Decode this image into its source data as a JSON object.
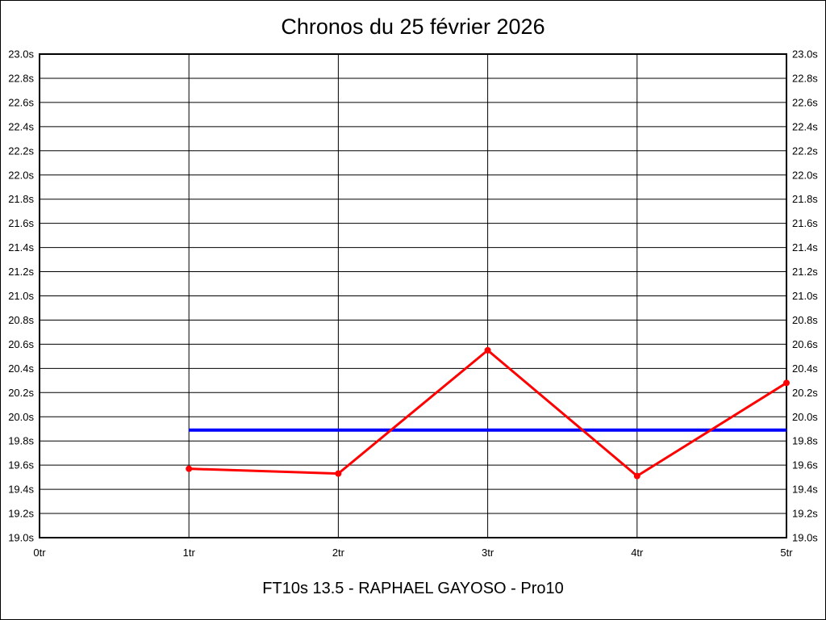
{
  "chart_data": {
    "type": "line",
    "title": "Chronos du 25 février 2026",
    "subtitle": "FT10s 13.5 - RAPHAEL GAYOSO - Pro10",
    "x_categories": [
      "0tr",
      "1tr",
      "2tr",
      "3tr",
      "4tr",
      "5tr"
    ],
    "xlim": [
      0,
      5
    ],
    "ylim": [
      19.0,
      23.0
    ],
    "y_tick_step": 0.2,
    "y_tick_suffix": "s",
    "y_axis_sides": "both",
    "grid": true,
    "legend": "none",
    "series": [
      {
        "name": "average-line",
        "color": "#0000ff",
        "marker": "none",
        "line_width": 4,
        "points": [
          {
            "x": 1,
            "y": 19.89
          },
          {
            "x": 5,
            "y": 19.89
          }
        ]
      },
      {
        "name": "lap-times",
        "color": "#ff0000",
        "marker": "circle",
        "line_width": 3,
        "points": [
          {
            "x": 1,
            "y": 19.57
          },
          {
            "x": 2,
            "y": 19.53
          },
          {
            "x": 3,
            "y": 20.55
          },
          {
            "x": 4,
            "y": 19.51
          },
          {
            "x": 5,
            "y": 20.28
          }
        ]
      }
    ]
  },
  "colors": {
    "background": "#ffffff",
    "frame_border": "#000000",
    "grid": "#000000",
    "text": "#000000",
    "series_red": "#ff0000",
    "series_blue": "#0000ff"
  }
}
